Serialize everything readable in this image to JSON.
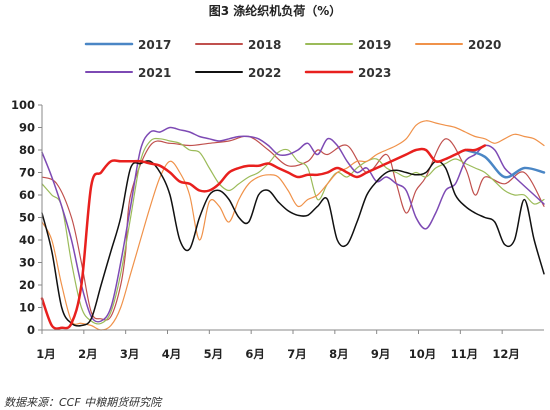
{
  "chart_data": {
    "type": "line",
    "title": "图3 涤纶织机负荷（%）",
    "ylim": [
      0,
      100
    ],
    "yticks": [
      0,
      10,
      20,
      30,
      40,
      50,
      60,
      70,
      80,
      90,
      100
    ],
    "x_tick_labels": [
      "1月",
      "2月",
      "3月",
      "4月",
      "5月",
      "6月",
      "7月",
      "8月",
      "9月",
      "10月",
      "11月",
      "12月"
    ],
    "x_domain": [
      1,
      52
    ],
    "grid": false,
    "legend_position": "top",
    "series": [
      {
        "name": "2017",
        "color": "#4A86C5",
        "width": 2.5,
        "x": [
          44,
          46,
          48,
          50,
          52
        ],
        "y": [
          80,
          77,
          68,
          72,
          70
        ]
      },
      {
        "name": "2018",
        "color": "#C0504D",
        "width": 1.2,
        "x": [
          1,
          2.5,
          4,
          5,
          6,
          7,
          8,
          9,
          9.5,
          10,
          12,
          14,
          16,
          18,
          20,
          22,
          24,
          26,
          28,
          29,
          30,
          32,
          34,
          36,
          37,
          38,
          39,
          40,
          42,
          44,
          45,
          46,
          48,
          50,
          52
        ],
        "y": [
          68,
          65,
          50,
          30,
          8,
          5,
          6,
          20,
          35,
          60,
          82,
          83,
          82,
          83,
          84,
          86,
          80,
          73,
          75,
          80,
          78,
          82,
          70,
          78,
          65,
          52,
          62,
          68,
          85,
          72,
          60,
          68,
          65,
          70,
          55
        ]
      },
      {
        "name": "2019",
        "color": "#9BBB59",
        "width": 1.2,
        "x": [
          1,
          2,
          3,
          4,
          5,
          6,
          7,
          8,
          9,
          10,
          11,
          12,
          13,
          14,
          15,
          16,
          17,
          18,
          19,
          20,
          21,
          22,
          23,
          24,
          25,
          26,
          27,
          28,
          29,
          30,
          31,
          32,
          33,
          34,
          35,
          36,
          37,
          38,
          39,
          40,
          41,
          42,
          43,
          44,
          45,
          46,
          47,
          48,
          49,
          50,
          51,
          52
        ],
        "y": [
          65,
          60,
          55,
          30,
          10,
          4,
          3,
          8,
          25,
          50,
          75,
          84,
          85,
          84,
          83,
          80,
          79,
          72,
          65,
          62,
          65,
          68,
          70,
          74,
          79,
          80,
          75,
          72,
          58,
          65,
          70,
          68,
          72,
          75,
          76,
          72,
          70,
          68,
          70,
          68,
          72,
          74,
          76,
          74,
          72,
          70,
          66,
          62,
          60,
          60,
          56,
          58
        ]
      },
      {
        "name": "2020",
        "color": "#F0924A",
        "width": 1.2,
        "x": [
          1,
          2,
          3,
          4,
          5,
          6,
          7,
          8,
          9,
          10,
          11,
          12,
          13,
          14,
          15,
          16,
          17,
          18,
          19,
          20,
          21,
          22,
          23,
          24,
          25,
          26,
          27,
          28,
          29,
          30,
          31,
          32,
          33,
          34,
          35,
          36,
          37,
          38,
          39,
          40,
          41,
          42,
          43,
          44,
          45,
          46,
          47,
          48,
          49,
          50,
          51,
          52
        ],
        "y": [
          48,
          40,
          20,
          4,
          3,
          2,
          0,
          2,
          10,
          25,
          40,
          55,
          68,
          75,
          70,
          60,
          40,
          57,
          55,
          48,
          58,
          65,
          68,
          69,
          68,
          62,
          55,
          58,
          60,
          65,
          70,
          72,
          75,
          75,
          78,
          80,
          82,
          85,
          91,
          93,
          92,
          91,
          90,
          88,
          86,
          85,
          83,
          85,
          87,
          86,
          85,
          82
        ]
      },
      {
        "name": "2021",
        "color": "#7D4AB4",
        "width": 1.5,
        "x": [
          1,
          2,
          3,
          4,
          5,
          6,
          7,
          8,
          9,
          10,
          11,
          12,
          13,
          14,
          15,
          16,
          17,
          18,
          19,
          20,
          21,
          22,
          23,
          24,
          25,
          26,
          27,
          28,
          29,
          30,
          31,
          32,
          33,
          34,
          35,
          36,
          37,
          38,
          39,
          40,
          41,
          42,
          43,
          44,
          45,
          46,
          47,
          48,
          49,
          50,
          51,
          52
        ],
        "y": [
          79,
          68,
          55,
          40,
          20,
          6,
          4,
          10,
          30,
          55,
          80,
          88,
          88,
          90,
          89,
          88,
          86,
          85,
          84,
          85,
          86,
          86,
          85,
          82,
          78,
          78,
          80,
          83,
          78,
          85,
          82,
          75,
          70,
          72,
          66,
          68,
          65,
          62,
          50,
          45,
          52,
          62,
          65,
          75,
          78,
          82,
          80,
          72,
          68,
          64,
          60,
          56
        ]
      },
      {
        "name": "2022",
        "color": "#111111",
        "width": 1.5,
        "x": [
          1,
          2,
          3,
          4,
          5,
          6,
          7,
          8,
          9,
          10,
          11,
          12,
          13,
          14,
          15,
          16,
          17,
          18,
          19,
          20,
          21,
          22,
          23,
          24,
          25,
          26,
          27,
          28,
          29,
          30,
          31,
          32,
          33,
          34,
          35,
          36,
          37,
          38,
          39,
          40,
          41,
          42,
          43,
          44,
          45,
          46,
          47,
          48,
          49,
          50,
          51,
          52
        ],
        "y": [
          52,
          35,
          10,
          3,
          2,
          5,
          20,
          35,
          50,
          72,
          74,
          75,
          70,
          60,
          40,
          36,
          50,
          60,
          62,
          58,
          50,
          48,
          60,
          62,
          57,
          53,
          51,
          51,
          55,
          58,
          40,
          38,
          48,
          60,
          66,
          70,
          71,
          70,
          69,
          70,
          75,
          72,
          60,
          55,
          52,
          50,
          48,
          38,
          40,
          58,
          40,
          25
        ]
      },
      {
        "name": "2023",
        "color": "#E8201E",
        "width": 2.5,
        "x": [
          1,
          2,
          3,
          4,
          5,
          6,
          7,
          8,
          9,
          10,
          11,
          12,
          13,
          14,
          15,
          16,
          17,
          18,
          19,
          20,
          21,
          22,
          23,
          24,
          25,
          26,
          27,
          28,
          29,
          30,
          31,
          32,
          33,
          34,
          35,
          36,
          37,
          38,
          39,
          40,
          41,
          42,
          43,
          44,
          45,
          46
        ],
        "y": [
          14,
          2,
          1,
          3,
          20,
          64,
          70,
          75,
          75,
          75,
          75,
          74,
          73,
          70,
          66,
          65,
          62,
          62,
          65,
          70,
          72,
          73,
          73,
          74,
          72,
          70,
          68,
          69,
          69,
          70,
          72,
          70,
          68,
          70,
          72,
          74,
          76,
          78,
          80,
          80,
          75,
          76,
          78,
          80,
          80,
          82
        ]
      }
    ]
  },
  "source_text": "数据来源：CCF 中粮期货研究院"
}
